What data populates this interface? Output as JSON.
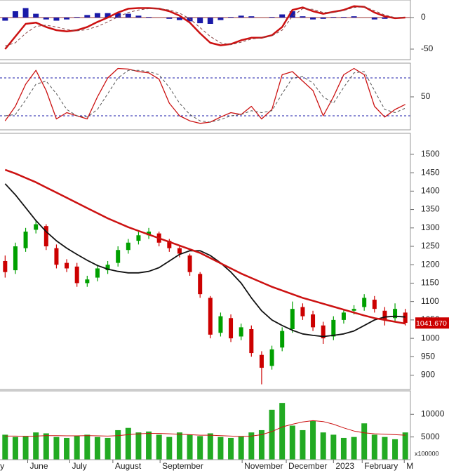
{
  "chart_data": [
    {
      "type": "macd",
      "ylim": [
        -66.7,
        27.8
      ],
      "yticks": [
        -50,
        0
      ],
      "series": [
        {
          "type": "bar",
          "color": "#1a1aa8",
          "values": [
            -5,
            10,
            15,
            6,
            -3,
            -5,
            -3,
            1,
            4,
            7,
            7,
            7,
            6,
            3,
            1,
            0,
            -2,
            -4,
            -6,
            -9,
            -10,
            -4,
            1,
            3,
            2,
            0,
            1,
            5,
            10,
            2,
            -3,
            -2,
            1,
            1,
            2,
            0,
            -3,
            -2,
            -1,
            0
          ]
        },
        {
          "type": "line",
          "color": "#cc1111",
          "width": 2.5,
          "values": [
            -50,
            -30,
            -10,
            -8,
            -15,
            -20,
            -22,
            -20,
            -15,
            -7,
            0,
            8,
            14,
            15,
            15,
            14,
            10,
            3,
            -8,
            -25,
            -40,
            -44,
            -42,
            -36,
            -32,
            -32,
            -28,
            -15,
            12,
            16,
            10,
            6,
            9,
            12,
            18,
            17,
            8,
            2,
            -1,
            0
          ]
        },
        {
          "type": "line",
          "color": "#884444",
          "width": 1,
          "dash": true,
          "values": [
            -45,
            -40,
            -25,
            -14,
            -12,
            -15,
            -19,
            -21,
            -19,
            -14,
            -7,
            1,
            8,
            12,
            14,
            14,
            12,
            7,
            -2,
            -16,
            -30,
            -40,
            -43,
            -39,
            -34,
            -32,
            -29,
            -20,
            2,
            14,
            13,
            8,
            8,
            11,
            16,
            17,
            11,
            4,
            0,
            0
          ]
        }
      ]
    },
    {
      "type": "line",
      "ylim": [
        -2.2,
        103.3
      ],
      "yticks": [
        50
      ],
      "levels": [
        20,
        80
      ],
      "level_color": "#1a1aa8",
      "series": [
        {
          "color": "#cc1111",
          "width": 1.3,
          "values": [
            12,
            35,
            70,
            92,
            60,
            15,
            25,
            20,
            15,
            50,
            80,
            95,
            94,
            90,
            88,
            78,
            40,
            20,
            12,
            8,
            10,
            18,
            25,
            22,
            35,
            15,
            30,
            85,
            90,
            75,
            60,
            20,
            50,
            85,
            95,
            85,
            35,
            18,
            30,
            38
          ]
        },
        {
          "color": "#555555",
          "width": 1,
          "dash": true,
          "values": [
            20,
            22,
            45,
            70,
            75,
            55,
            30,
            20,
            18,
            30,
            55,
            80,
            92,
            92,
            90,
            85,
            65,
            40,
            22,
            12,
            10,
            14,
            20,
            22,
            28,
            25,
            28,
            55,
            80,
            82,
            72,
            50,
            40,
            65,
            88,
            90,
            60,
            30,
            25,
            32
          ]
        }
      ]
    },
    {
      "type": "candlestick",
      "ylim": [
        861,
        1557
      ],
      "yticks": [
        900,
        950,
        1000,
        1050,
        1100,
        1150,
        1200,
        1250,
        1300,
        1350,
        1400,
        1450,
        1500
      ],
      "up_color": "#00a000",
      "down_color": "#cc0000",
      "open": [
        1210,
        1185,
        1245,
        1295,
        1305,
        1245,
        1205,
        1195,
        1150,
        1165,
        1185,
        1205,
        1240,
        1265,
        1280,
        1285,
        1265,
        1245,
        1225,
        1175,
        1110,
        1015,
        1055,
        1005,
        1025,
        955,
        925,
        975,
        1025,
        1085,
        1065,
        1035,
        1005,
        1050,
        1075,
        1085,
        1105,
        1075,
        1055,
        1070
      ],
      "high": [
        1225,
        1260,
        1300,
        1320,
        1310,
        1255,
        1215,
        1205,
        1170,
        1200,
        1210,
        1250,
        1270,
        1290,
        1300,
        1290,
        1270,
        1250,
        1230,
        1180,
        1115,
        1070,
        1065,
        1040,
        1035,
        965,
        980,
        1030,
        1100,
        1095,
        1075,
        1045,
        1060,
        1080,
        1090,
        1120,
        1115,
        1085,
        1095,
        1080
      ],
      "low": [
        1165,
        1175,
        1235,
        1285,
        1240,
        1190,
        1180,
        1140,
        1140,
        1155,
        1175,
        1195,
        1230,
        1255,
        1270,
        1250,
        1235,
        1220,
        1170,
        1110,
        1000,
        1005,
        990,
        995,
        950,
        875,
        915,
        965,
        1015,
        1050,
        1020,
        985,
        995,
        1040,
        1065,
        1075,
        1070,
        1035,
        1045,
        1035
      ],
      "close": [
        1180,
        1250,
        1290,
        1310,
        1250,
        1200,
        1190,
        1150,
        1160,
        1190,
        1200,
        1240,
        1260,
        1280,
        1290,
        1260,
        1245,
        1230,
        1180,
        1120,
        1010,
        1060,
        1000,
        1030,
        960,
        920,
        970,
        1020,
        1080,
        1060,
        1030,
        1000,
        1050,
        1070,
        1080,
        1110,
        1080,
        1050,
        1080,
        1042
      ],
      "series": [
        {
          "color": "#111111",
          "width": 1.8,
          "values": [
            1420,
            1390,
            1355,
            1320,
            1290,
            1265,
            1245,
            1228,
            1212,
            1198,
            1188,
            1182,
            1178,
            1178,
            1182,
            1192,
            1210,
            1228,
            1238,
            1238,
            1225,
            1205,
            1180,
            1150,
            1110,
            1075,
            1050,
            1035,
            1022,
            1012,
            1008,
            1005,
            1008,
            1012,
            1020,
            1035,
            1050,
            1058,
            1060,
            1058
          ]
        },
        {
          "color": "#cc1111",
          "width": 2.5,
          "values": [
            1458,
            1448,
            1436,
            1424,
            1410,
            1396,
            1382,
            1368,
            1354,
            1340,
            1326,
            1314,
            1302,
            1292,
            1282,
            1272,
            1262,
            1252,
            1242,
            1232,
            1218,
            1204,
            1190,
            1176,
            1164,
            1152,
            1140,
            1130,
            1120,
            1110,
            1102,
            1094,
            1086,
            1078,
            1070,
            1062,
            1055,
            1050,
            1045,
            1040
          ]
        }
      ],
      "last_price": {
        "value": 1041.67,
        "label": "1041.670"
      },
      "last_price_color": "#cc0000"
    },
    {
      "type": "volume",
      "ylim": [
        0,
        15150
      ],
      "yticks": [
        5000,
        10000
      ],
      "unit": "x100000",
      "color": "#22aa22",
      "values": [
        5500,
        5000,
        5200,
        6000,
        5800,
        5000,
        4800,
        5200,
        5500,
        5000,
        4800,
        6500,
        7000,
        6000,
        6200,
        5500,
        5000,
        6000,
        5500,
        5200,
        5800,
        5000,
        4800,
        5200,
        6000,
        6500,
        11000,
        12500,
        7500,
        6500,
        8500,
        6000,
        5500,
        4800,
        5000,
        8000,
        5500,
        5000,
        4500,
        6000
      ],
      "series": [
        {
          "color": "#cc1111",
          "width": 1,
          "values": [
            5200,
            5200,
            5150,
            5200,
            5300,
            5300,
            5250,
            5250,
            5300,
            5250,
            5200,
            5300,
            5500,
            5700,
            5800,
            5800,
            5700,
            5600,
            5500,
            5400,
            5400,
            5300,
            5200,
            5100,
            5200,
            5500,
            6200,
            7200,
            7800,
            8300,
            8600,
            8400,
            7800,
            7000,
            6300,
            5900,
            5700,
            5600,
            5500,
            5400
          ]
        }
      ],
      "xlim": [
        0,
        40
      ],
      "xticks": [
        {
          "value": -0.2,
          "label": "y"
        },
        {
          "value": 2.7,
          "label": "June"
        },
        {
          "value": 6.8,
          "label": "July"
        },
        {
          "value": 11.0,
          "label": "August"
        },
        {
          "value": 15.6,
          "label": "September"
        },
        {
          "value": 23.6,
          "label": "November"
        },
        {
          "value": 27.9,
          "label": "December"
        },
        {
          "value": 32.5,
          "label": "2023"
        },
        {
          "value": 35.3,
          "label": "February"
        },
        {
          "value": 39.4,
          "label": "M"
        }
      ]
    }
  ]
}
